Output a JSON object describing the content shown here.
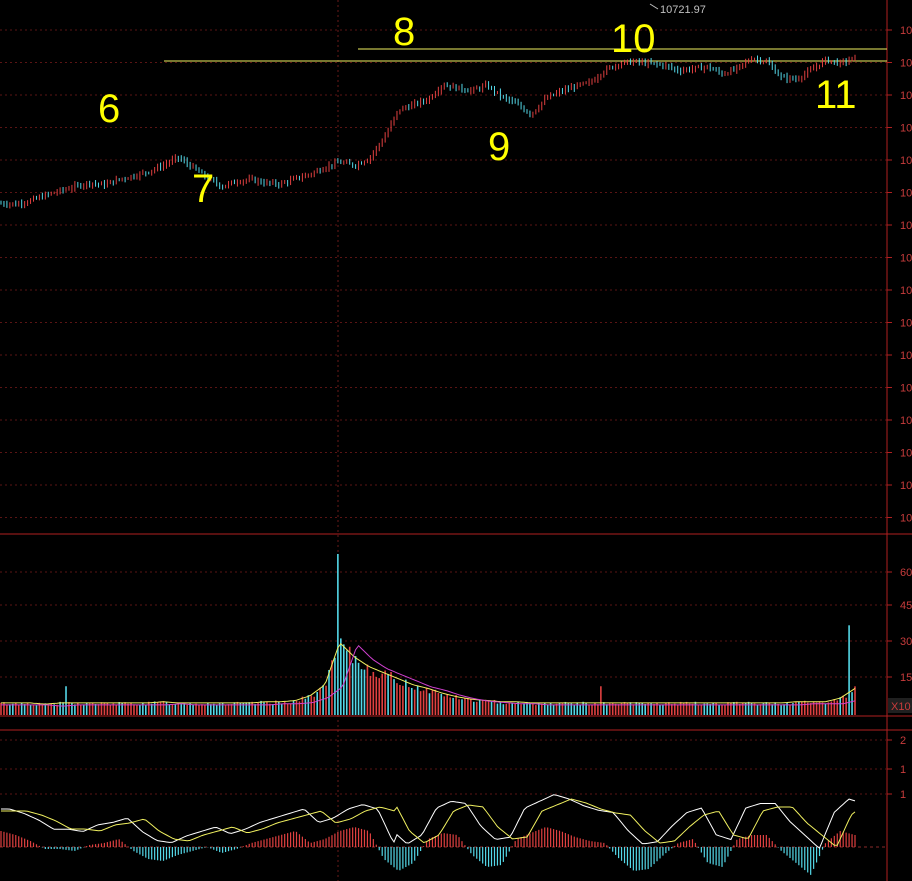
{
  "chart_data": [
    {
      "type": "candlestick",
      "panel": "price",
      "peak_marker_label": "10721.97",
      "price_axis_tick_labels": [
        "10",
        "10",
        "10",
        "10",
        "10",
        "10",
        "10",
        "10",
        "10",
        "10",
        "10",
        "10",
        "10",
        "10",
        "10",
        "10"
      ],
      "wave_labels": [
        {
          "label": "6"
        },
        {
          "label": "7"
        },
        {
          "label": "8"
        },
        {
          "label": "9"
        },
        {
          "label": "10"
        },
        {
          "label": "11"
        }
      ],
      "relative_close_series": [
        0.19,
        0.18,
        0.22,
        0.28,
        0.33,
        0.38,
        0.42,
        0.4,
        0.46,
        0.5,
        0.55,
        0.62,
        0.71,
        0.6,
        0.48,
        0.38,
        0.44,
        0.46,
        0.42,
        0.41,
        0.47,
        0.52,
        0.6,
        0.66,
        0.62,
        0.7,
        0.93,
        1.25,
        1.31,
        1.37,
        1.54,
        1.5,
        1.47,
        1.53,
        1.4,
        1.32,
        1.2,
        1.38,
        1.46,
        1.52,
        1.56,
        1.7,
        1.78,
        1.8,
        1.78,
        1.76,
        1.7,
        1.72,
        1.74,
        1.66,
        1.72,
        1.84,
        1.8,
        1.62,
        1.6,
        1.7,
        1.82,
        1.78,
        1.84
      ]
    },
    {
      "type": "bar",
      "panel": "volume",
      "axis_tick_labels": [
        "60",
        "45",
        "30",
        "15"
      ],
      "multiplier_label": "X10",
      "relative_volume_series": [
        0.1,
        0.1,
        0.1,
        0.09,
        0.1,
        0.1,
        0.1,
        0.1,
        0.1,
        0.1,
        0.1,
        0.11,
        0.1,
        0.1,
        0.1,
        0.1,
        0.1,
        0.1,
        0.11,
        0.11,
        0.12,
        0.16,
        0.25,
        0.6,
        0.48,
        0.4,
        0.35,
        0.3,
        0.25,
        0.22,
        0.18,
        0.15,
        0.13,
        0.12,
        0.11,
        0.11,
        0.1,
        0.1,
        0.1,
        0.1,
        0.1,
        0.1,
        0.1,
        0.1,
        0.1,
        0.1,
        0.1,
        0.1,
        0.1,
        0.1,
        0.1,
        0.1,
        0.1,
        0.1,
        0.11,
        0.11,
        0.11,
        0.14,
        0.22
      ]
    },
    {
      "type": "bar",
      "panel": "macd",
      "axis_tick_labels": [
        "2",
        "1",
        "1"
      ],
      "relative_histogram_series": [
        0.4,
        0.3,
        0.15,
        -0.05,
        -0.05,
        -0.1,
        0.05,
        0.1,
        0.2,
        -0.1,
        -0.3,
        -0.35,
        -0.2,
        -0.1,
        0.0,
        -0.15,
        -0.05,
        0.1,
        0.2,
        0.3,
        0.4,
        0.1,
        0.2,
        0.4,
        0.5,
        0.4,
        -0.3,
        -0.6,
        -0.4,
        0.2,
        0.35,
        0.3,
        -0.2,
        -0.5,
        -0.45,
        0.2,
        0.35,
        0.5,
        0.4,
        0.25,
        0.15,
        0.1,
        -0.3,
        -0.6,
        -0.55,
        -0.2,
        0.1,
        0.2,
        -0.4,
        -0.5,
        0.2,
        0.3,
        0.3,
        -0.1,
        -0.4,
        -0.7,
        0.1,
        0.4,
        0.3
      ]
    }
  ]
}
